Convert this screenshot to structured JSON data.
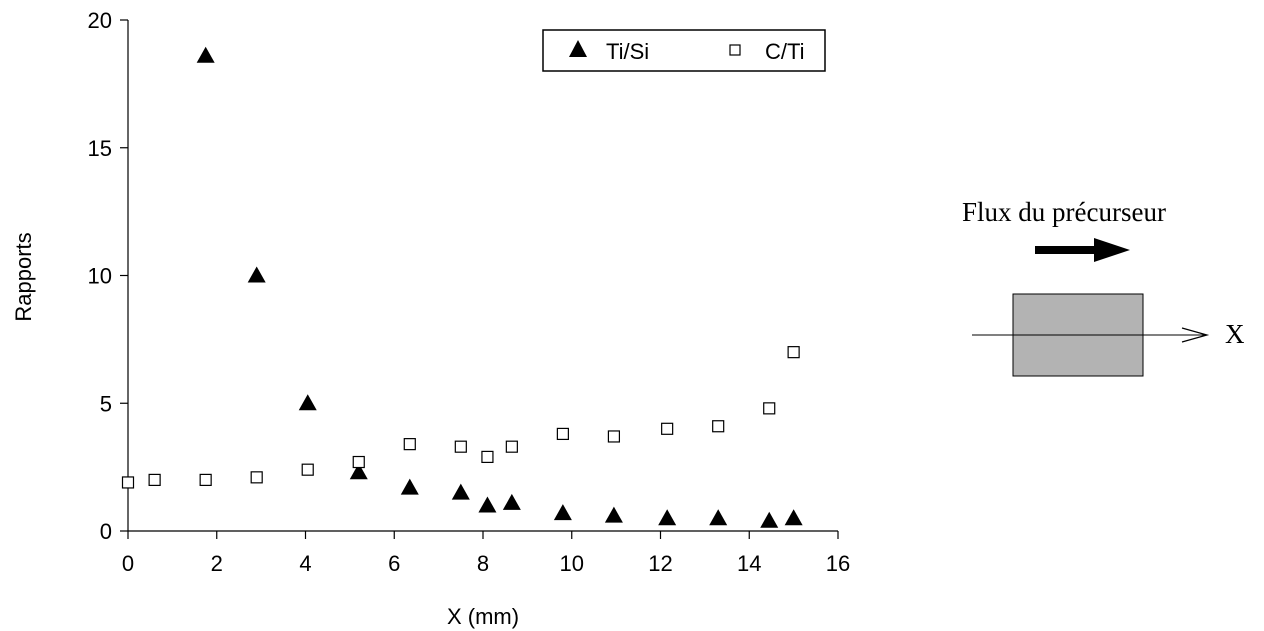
{
  "chart_data": {
    "type": "scatter",
    "xlabel": "X (mm)",
    "ylabel": "Rapports",
    "xlim": [
      0,
      16
    ],
    "ylim": [
      0,
      20
    ],
    "x_ticks": [
      0,
      2,
      4,
      6,
      8,
      10,
      12,
      14,
      16
    ],
    "y_ticks": [
      0,
      5,
      10,
      15,
      20
    ],
    "grid": false,
    "legend_position": "top-right",
    "series": [
      {
        "name": "Ti/Si",
        "marker": "filled-triangle",
        "color": "#000000",
        "points": [
          [
            1.75,
            18.6
          ],
          [
            2.9,
            10.0
          ],
          [
            4.05,
            5.0
          ],
          [
            5.2,
            2.3
          ],
          [
            6.35,
            1.7
          ],
          [
            7.5,
            1.5
          ],
          [
            8.1,
            1.0
          ],
          [
            8.65,
            1.1
          ],
          [
            9.8,
            0.7
          ],
          [
            10.95,
            0.6
          ],
          [
            12.15,
            0.5
          ],
          [
            13.3,
            0.5
          ],
          [
            14.45,
            0.4
          ],
          [
            15.0,
            0.5
          ]
        ]
      },
      {
        "name": "C/Ti",
        "marker": "open-square",
        "color": "#000000",
        "points": [
          [
            0.0,
            1.9
          ],
          [
            0.6,
            2.0
          ],
          [
            1.75,
            2.0
          ],
          [
            2.9,
            2.1
          ],
          [
            4.05,
            2.4
          ],
          [
            5.2,
            2.7
          ],
          [
            6.35,
            3.4
          ],
          [
            7.5,
            3.3
          ],
          [
            8.1,
            2.9
          ],
          [
            8.65,
            3.3
          ],
          [
            9.8,
            3.8
          ],
          [
            10.95,
            3.7
          ],
          [
            12.15,
            4.0
          ],
          [
            13.3,
            4.1
          ],
          [
            14.45,
            4.8
          ],
          [
            15.0,
            7.0
          ]
        ]
      }
    ]
  },
  "schematic": {
    "flow_label": "Flux du  précurseur",
    "axis_label": "X",
    "substrate_fill": "#b3b3b3"
  }
}
